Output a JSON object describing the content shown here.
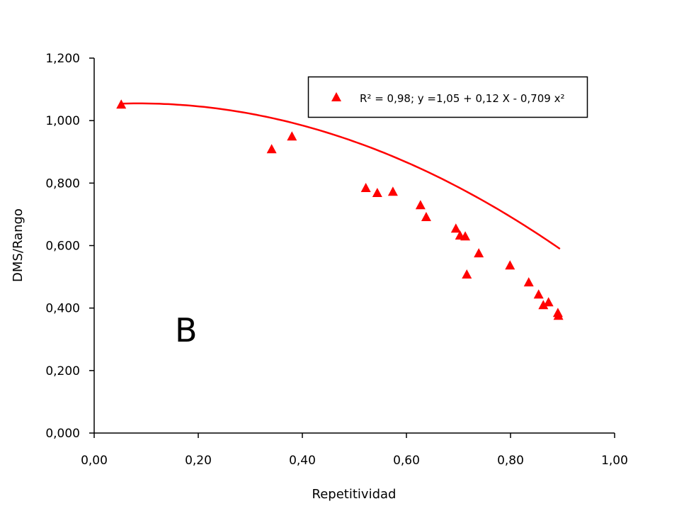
{
  "chart_data": {
    "type": "scatter",
    "title": "",
    "xlabel": "Repetitividad",
    "ylabel": "DMS/Rango",
    "xlim": [
      0,
      1.0
    ],
    "ylim": [
      0,
      1.2
    ],
    "xticks": [
      "0,00",
      "0,20",
      "0,40",
      "0,60",
      "0,80",
      "1,00"
    ],
    "yticks": [
      "0,000",
      "0,200",
      "0,400",
      "0,600",
      "0,800",
      "1,000",
      "1,200"
    ],
    "xtick_values": [
      0,
      0.2,
      0.4,
      0.6,
      0.8,
      1.0
    ],
    "ytick_values": [
      0,
      0.2,
      0.4,
      0.6,
      0.8,
      1.0,
      1.2
    ],
    "panel_label": "B",
    "marker_color": "#ff0000",
    "grid": false,
    "legend": {
      "placement": "top-right",
      "label": "R² = 0,98; y =1,05 + 0,12 X - 0,709 x²"
    },
    "fit": {
      "type": "quadratic",
      "a": 1.05,
      "b": 0.12,
      "c": -0.709,
      "x_range": [
        0.05,
        0.895
      ]
    },
    "series": [
      {
        "name": "data",
        "points": [
          [
            0.052,
            1.052
          ],
          [
            0.341,
            0.909
          ],
          [
            0.38,
            0.95
          ],
          [
            0.522,
            0.785
          ],
          [
            0.544,
            0.769
          ],
          [
            0.574,
            0.773
          ],
          [
            0.627,
            0.73
          ],
          [
            0.638,
            0.692
          ],
          [
            0.695,
            0.655
          ],
          [
            0.703,
            0.633
          ],
          [
            0.713,
            0.63
          ],
          [
            0.716,
            0.508
          ],
          [
            0.739,
            0.576
          ],
          [
            0.799,
            0.537
          ],
          [
            0.835,
            0.483
          ],
          [
            0.854,
            0.444
          ],
          [
            0.863,
            0.41
          ],
          [
            0.873,
            0.419
          ],
          [
            0.891,
            0.385
          ],
          [
            0.892,
            0.376
          ]
        ]
      }
    ]
  }
}
